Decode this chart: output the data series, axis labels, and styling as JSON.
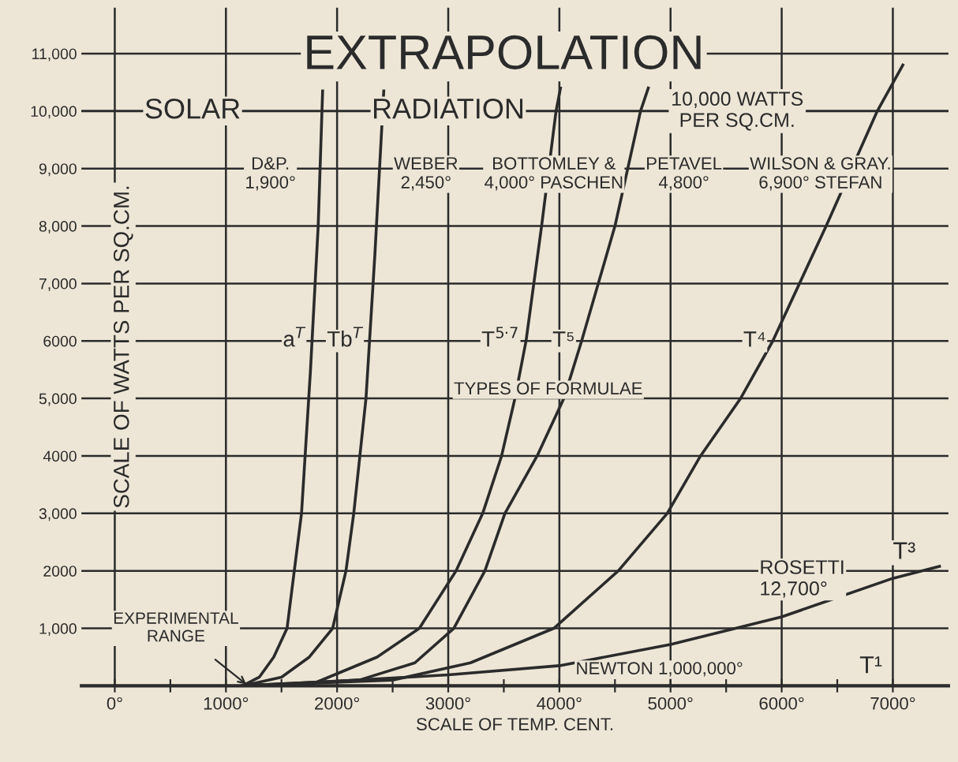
{
  "chart_data": {
    "type": "line",
    "title": "EXTRAPOLATION",
    "xlabel": "SCALE OF TEMP. CENT.",
    "ylabel": "SCALE OF WATTS PER SQ.CM.",
    "series": [
      {
        "name": "a$^{T}$",
        "color": "#2b2b2b",
        "x": [
          1150,
          1300,
          1430,
          1550,
          1680,
          1760,
          1830,
          1870
        ],
        "values": [
          0,
          150,
          500,
          1000,
          3000,
          5470,
          8000,
          10350
        ]
      },
      {
        "name": "Tb$^{T}$",
        "color": "#2b2b2b",
        "x": [
          1150,
          1500,
          1750,
          1960,
          2080,
          2150,
          2260,
          2340,
          2420
        ],
        "values": [
          0,
          150,
          500,
          1000,
          2000,
          3000,
          5000,
          7500,
          10350
        ]
      },
      {
        "name": "T$^{5·7}$",
        "color": "#2b2b2b",
        "x": [
          1150,
          1800,
          2360,
          2740,
          3070,
          3310,
          3480,
          3600,
          3700,
          3840,
          3970,
          4010
        ],
        "values": [
          0,
          50,
          500,
          1000,
          2000,
          3000,
          4000,
          5000,
          6000,
          8000,
          10000,
          10400
        ]
      },
      {
        "name": "T⁵",
        "color": "#2b2b2b",
        "x": [
          1150,
          2200,
          2700,
          3050,
          3330,
          3510,
          3800,
          4040,
          4200,
          4500,
          4730,
          4800
        ],
        "values": [
          0,
          100,
          400,
          1000,
          2000,
          3000,
          4000,
          5000,
          6000,
          8000,
          10000,
          10400
        ]
      },
      {
        "name": "T⁴",
        "color": "#2b2b2b",
        "x": [
          1150,
          2500,
          3200,
          3950,
          4530,
          4970,
          5270,
          5630,
          5920,
          6400,
          6860,
          7090
        ],
        "values": [
          0,
          100,
          400,
          1000,
          2000,
          3000,
          4000,
          5000,
          6000,
          8000,
          10000,
          10800
        ]
      },
      {
        "name": "T³",
        "color": "#2b2b2b",
        "x": [
          1150,
          2000,
          3000,
          4000,
          5000,
          6000,
          7000,
          7420
        ],
        "values": [
          0,
          80,
          190,
          350,
          720,
          1200,
          1870,
          2080
        ]
      }
    ],
    "xlim": [
      -300,
      7500
    ],
    "ylim": [
      0,
      11800
    ],
    "xticks": [
      {
        "value": 0,
        "label": "0°"
      },
      {
        "value": 500,
        "label": null
      },
      {
        "value": 1000,
        "label": "1000°"
      },
      {
        "value": 1500,
        "label": null
      },
      {
        "value": 2000,
        "label": "2000°"
      },
      {
        "value": 2500,
        "label": null
      },
      {
        "value": 3000,
        "label": "3000°"
      },
      {
        "value": 3500,
        "label": null
      },
      {
        "value": 4000,
        "label": "4000°"
      },
      {
        "value": 4500,
        "label": null
      },
      {
        "value": 5000,
        "label": "5000°"
      },
      {
        "value": 5500,
        "label": null
      },
      {
        "value": 6000,
        "label": "6000°"
      },
      {
        "value": 6500,
        "label": null
      },
      {
        "value": 7000,
        "label": "7000°"
      }
    ],
    "yticks": [
      {
        "value": 1000,
        "label": "1,000"
      },
      2000,
      {
        "value": 3000,
        "label": "3,000"
      },
      4000,
      {
        "value": 5000,
        "label": "5,000"
      },
      6000,
      {
        "value": 7000,
        "label": "7,000"
      },
      {
        "value": 8000,
        "label": "8,000"
      },
      {
        "value": 9000,
        "label": "9,000"
      },
      {
        "value": 10000,
        "label": "10,000"
      },
      {
        "value": 11000,
        "label": "11,000"
      }
    ],
    "ref_lines": [
      {
        "axis": "y",
        "value": 10000,
        "label": "10,000 WATTS\nPER SQ.CM.",
        "color": "#2b2b2b"
      }
    ],
    "annotations": [
      "SOLAR",
      "RADIATION",
      "D&P.\n1,900°",
      "WEBER\n2,450°",
      "BOTTOMLEY &\n4,000° PASCHEN",
      "PETAVEL\n4,800°",
      "WILSON & GRAY.\n6,900° STEFAN",
      "TYPES OF FORMULAE",
      "ROSETTI\n12,700°",
      "NEWTON 1,000,000°",
      "T¹",
      {
        "text": "EXPERIMENTAL\nRANGE",
        "x": 1200,
        "y": 0
      }
    ],
    "grid": true,
    "marker": "none",
    "line_style": "solid"
  }
}
